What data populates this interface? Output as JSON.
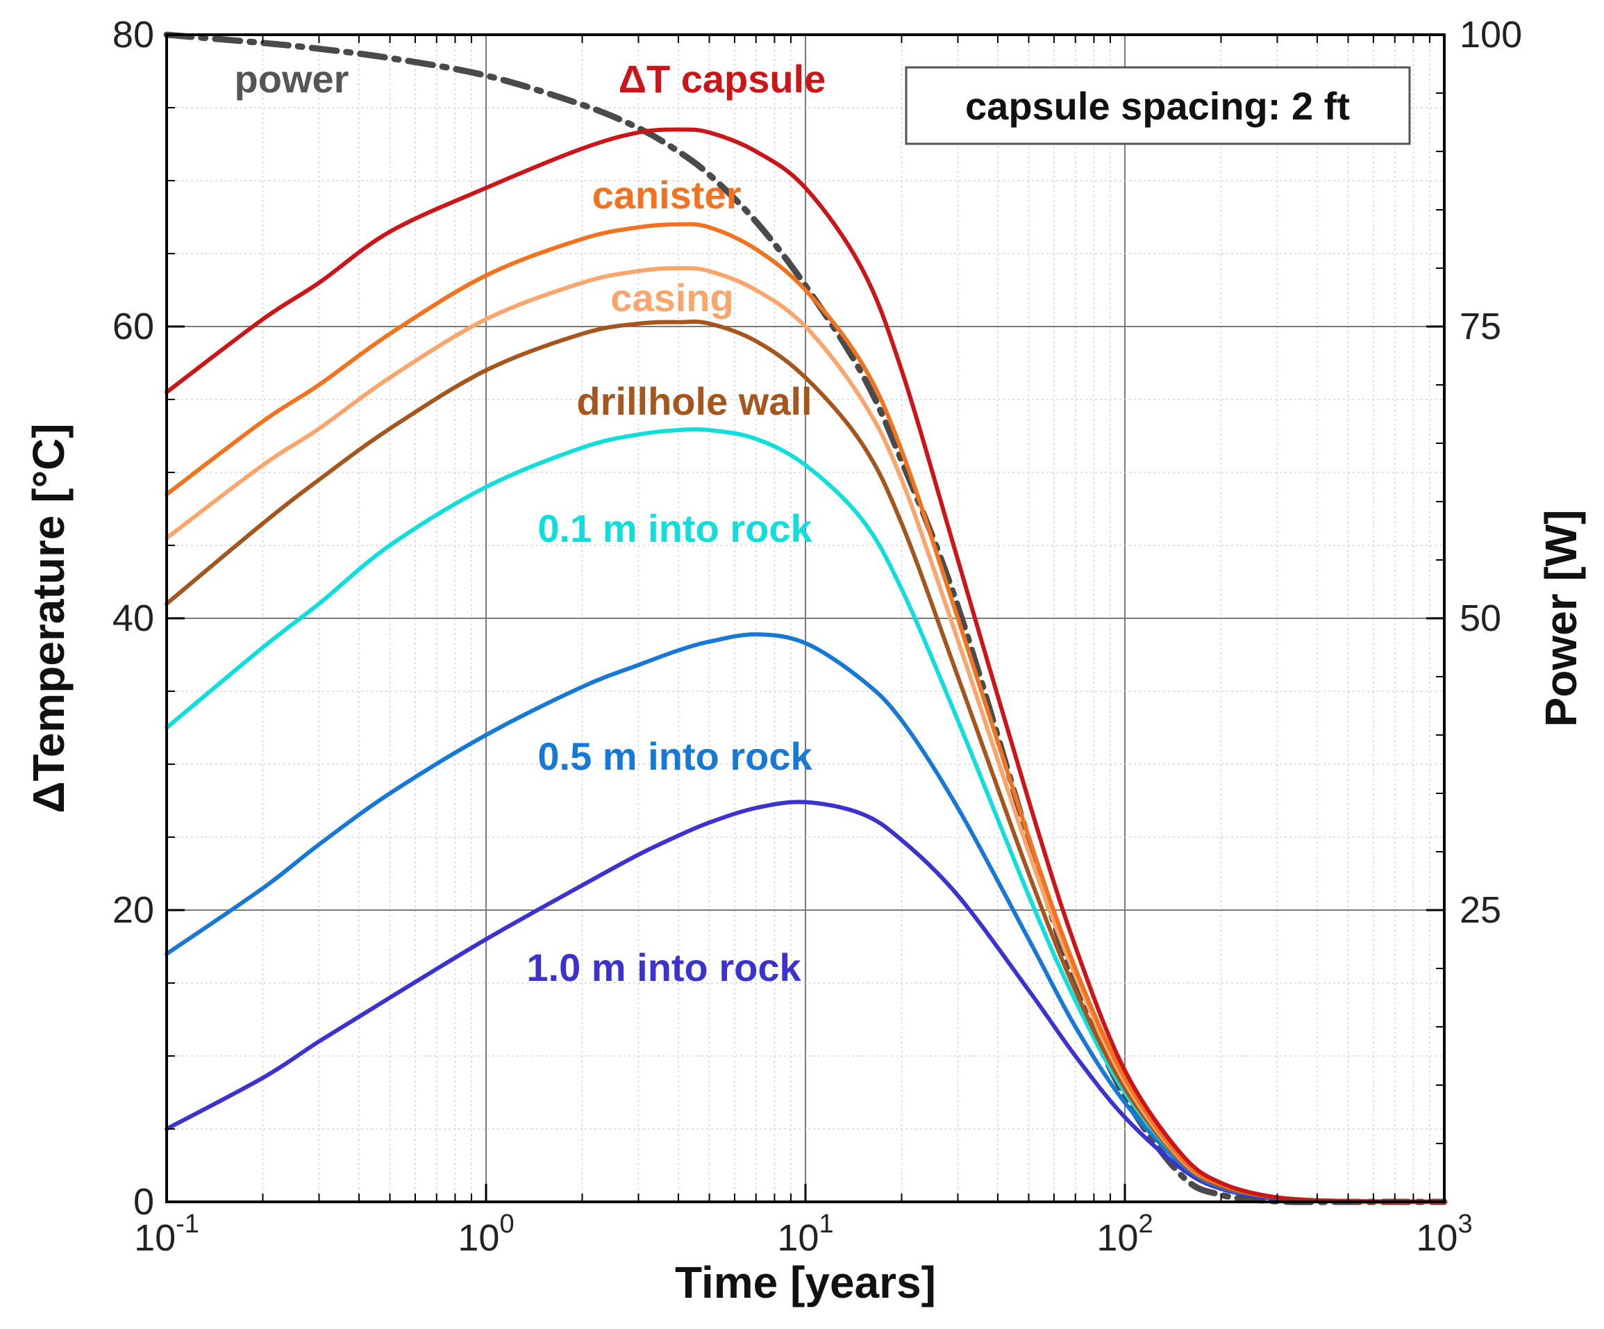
{
  "chart_data": {
    "type": "line",
    "title": "",
    "xlabel": "Time [years]",
    "ylabel": "ΔTemperature [°C]",
    "y2label": "Power [W]",
    "xscale": "log",
    "xlim": [
      0.1,
      1000
    ],
    "ylim": [
      0,
      80
    ],
    "y2lim": [
      0,
      100
    ],
    "grid": true,
    "x_ticks": [
      {
        "base": "10",
        "exp": "-1"
      },
      {
        "base": "10",
        "exp": "0"
      },
      {
        "base": "10",
        "exp": "1"
      },
      {
        "base": "10",
        "exp": "2"
      },
      {
        "base": "10",
        "exp": "3"
      }
    ],
    "y_ticks": [
      "0",
      "20",
      "40",
      "60",
      "80"
    ],
    "y2_ticks": [
      "25",
      "50",
      "75",
      "100"
    ],
    "legend_box": "capsule spacing: 2 ft",
    "series": [
      {
        "name": "ΔT capsule",
        "color": "#cc1518",
        "axis": "left",
        "x": [
          0.1,
          0.2,
          0.3,
          0.5,
          1,
          2,
          3,
          4,
          5,
          7,
          10,
          15,
          20,
          30,
          50,
          70,
          100,
          150,
          200,
          300,
          500,
          1000
        ],
        "values": [
          55.5,
          60.5,
          63,
          66.5,
          69.5,
          72.2,
          73.3,
          73.5,
          73.3,
          72,
          69.5,
          64,
          57,
          44,
          27.5,
          17.5,
          9,
          3.3,
          1.3,
          0.3,
          0.05,
          0.02
        ]
      },
      {
        "name": "canister",
        "color": "#f2731f",
        "axis": "left",
        "x": [
          0.1,
          0.2,
          0.3,
          0.5,
          1,
          2,
          3,
          4,
          5,
          7,
          10,
          15,
          20,
          30,
          50,
          70,
          100,
          150,
          200,
          300,
          500,
          1000
        ],
        "values": [
          48.5,
          53.5,
          56,
          59.5,
          63.5,
          66,
          66.8,
          67,
          66.8,
          65.3,
          62.5,
          57.5,
          51.5,
          40,
          25,
          16,
          8.5,
          3,
          1.2,
          0.3,
          0.05,
          0.02
        ]
      },
      {
        "name": "casing",
        "color": "#f9a56b",
        "axis": "left",
        "x": [
          0.1,
          0.2,
          0.3,
          0.5,
          1,
          2,
          3,
          4,
          5,
          7,
          10,
          15,
          20,
          30,
          50,
          70,
          100,
          150,
          200,
          300,
          500,
          1000
        ],
        "values": [
          45.5,
          50.5,
          53,
          56.5,
          60.5,
          63,
          63.8,
          64,
          63.8,
          62.5,
          60,
          55,
          49.5,
          38.5,
          24,
          15.5,
          8.2,
          2.9,
          1.2,
          0.3,
          0.05,
          0.02
        ]
      },
      {
        "name": "drillhole wall",
        "color": "#a4561d",
        "axis": "left",
        "x": [
          0.1,
          0.2,
          0.3,
          0.5,
          1,
          2,
          3,
          4,
          5,
          7,
          10,
          15,
          20,
          30,
          50,
          70,
          100,
          150,
          200,
          300,
          500,
          1000
        ],
        "values": [
          41,
          46.5,
          49.5,
          53,
          57,
          59.5,
          60.2,
          60.3,
          60.2,
          59,
          56.5,
          52,
          46.5,
          36,
          22.5,
          14.5,
          7.8,
          2.8,
          1.1,
          0.3,
          0.05,
          0.02
        ]
      },
      {
        "name": "0.1 m into rock",
        "color": "#10dedd",
        "axis": "left",
        "x": [
          0.1,
          0.2,
          0.3,
          0.5,
          1,
          2,
          3,
          4,
          5,
          7,
          10,
          15,
          20,
          30,
          50,
          70,
          100,
          150,
          200,
          300,
          500,
          1000
        ],
        "values": [
          32.5,
          38,
          41,
          45,
          49,
          51.7,
          52.6,
          52.9,
          52.9,
          52.3,
          50.5,
          46.8,
          42,
          33,
          21,
          13.8,
          7.5,
          2.8,
          1.1,
          0.3,
          0.05,
          0.02
        ]
      },
      {
        "name": "0.5 m into rock",
        "color": "#1878d6",
        "axis": "left",
        "x": [
          0.1,
          0.2,
          0.3,
          0.5,
          1,
          2,
          3,
          4,
          5,
          7,
          10,
          15,
          20,
          30,
          50,
          70,
          100,
          150,
          200,
          300,
          500,
          1000
        ],
        "values": [
          17,
          21.5,
          24.5,
          28,
          32,
          35.3,
          36.8,
          37.8,
          38.4,
          38.9,
          38.3,
          35.8,
          33,
          27,
          18,
          12,
          6.8,
          2.6,
          1,
          0.3,
          0.05,
          0.02
        ]
      },
      {
        "name": "1.0 m into rock",
        "color": "#3b32cf",
        "axis": "left",
        "x": [
          0.1,
          0.2,
          0.3,
          0.5,
          1,
          2,
          3,
          4,
          5,
          7,
          10,
          15,
          20,
          30,
          50,
          70,
          100,
          150,
          200,
          300,
          500,
          1000
        ],
        "values": [
          5,
          8.5,
          11,
          14,
          18,
          21.7,
          23.8,
          25.1,
          26,
          27,
          27.4,
          26.6,
          24.8,
          21,
          14.5,
          10,
          5.8,
          2.3,
          0.9,
          0.2,
          0.05,
          0.02
        ]
      },
      {
        "name": "power",
        "color": "#4a4a4a",
        "axis": "right",
        "dash": true,
        "x": [
          0.1,
          0.2,
          0.3,
          0.5,
          1,
          2,
          3,
          4,
          5,
          7,
          10,
          15,
          20,
          30,
          50,
          70,
          100,
          150,
          200,
          300,
          500,
          1000
        ],
        "values": [
          100,
          99.3,
          98.8,
          98,
          96.5,
          94,
          92,
          90,
          88,
          84,
          78.5,
          71,
          63.5,
          51,
          31,
          18.5,
          9,
          2.3,
          0.6,
          0.05,
          0,
          0
        ]
      }
    ],
    "annotations": [
      {
        "text": "power",
        "color": "#555555",
        "series": "power"
      },
      {
        "text": "ΔT capsule",
        "color": "#cc1518",
        "series": "ΔT capsule"
      },
      {
        "text": "canister",
        "color": "#f2731f",
        "series": "canister"
      },
      {
        "text": "casing",
        "color": "#f9a56b",
        "series": "casing"
      },
      {
        "text": "drillhole wall",
        "color": "#a4561d",
        "series": "drillhole wall"
      },
      {
        "text": "0.1 m into rock",
        "color": "#10dedd",
        "series": "0.1 m into rock"
      },
      {
        "text": "0.5 m into rock",
        "color": "#1878d6",
        "series": "0.5 m into rock"
      },
      {
        "text": "1.0 m into rock",
        "color": "#3b32cf",
        "series": "1.0 m into rock"
      }
    ]
  }
}
